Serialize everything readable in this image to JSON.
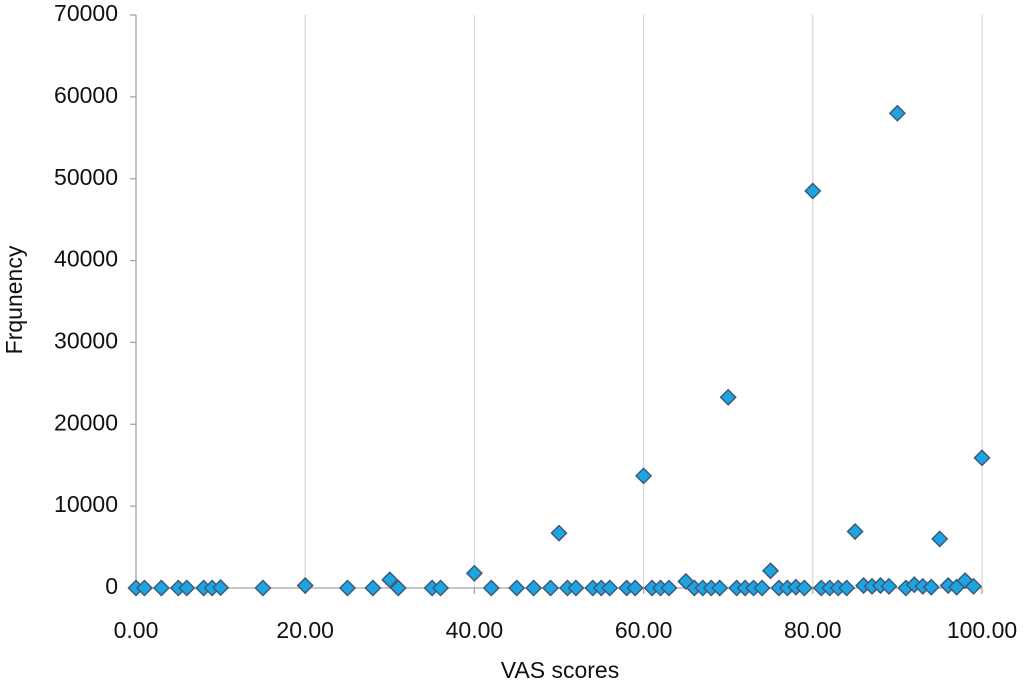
{
  "chart_data": {
    "type": "scatter",
    "x_label": "VAS scores",
    "y_label": "Frqunency",
    "color": "#1ea4e0",
    "grid": "x",
    "xlim": [
      0,
      100
    ],
    "ylim": [
      0,
      70000
    ],
    "xticks": [
      {
        "value": 0,
        "label": "0.00"
      },
      {
        "value": 20,
        "label": "20.00"
      },
      {
        "value": 40,
        "label": "40.00"
      },
      {
        "value": 60,
        "label": "60.00"
      },
      {
        "value": 80,
        "label": "80.00"
      },
      {
        "value": 100,
        "label": "100.00"
      }
    ],
    "yticks": [
      0,
      10000,
      20000,
      30000,
      40000,
      50000,
      60000,
      70000
    ],
    "x": [
      0,
      1,
      3,
      5,
      6,
      8,
      9,
      10,
      15,
      20,
      25,
      28,
      30,
      31,
      35,
      36,
      40,
      42,
      45,
      47,
      49,
      50,
      51,
      52,
      54,
      55,
      56,
      58,
      59,
      60,
      61,
      62,
      63,
      65,
      66,
      67,
      68,
      69,
      70,
      71,
      72,
      73,
      74,
      75,
      76,
      77,
      78,
      79,
      80,
      81,
      82,
      83,
      84,
      85,
      86,
      87,
      88,
      89,
      90,
      91,
      92,
      93,
      94,
      95,
      96,
      97,
      98,
      99,
      100
    ],
    "values": [
      0,
      0,
      0,
      0,
      0,
      0,
      0,
      50,
      0,
      300,
      0,
      0,
      1000,
      0,
      0,
      0,
      1800,
      0,
      0,
      0,
      0,
      6700,
      0,
      0,
      0,
      0,
      0,
      0,
      0,
      13700,
      0,
      0,
      0,
      800,
      0,
      0,
      0,
      0,
      23300,
      0,
      0,
      0,
      0,
      2100,
      0,
      0,
      100,
      0,
      48500,
      0,
      0,
      0,
      0,
      6900,
      300,
      200,
      300,
      200,
      58000,
      0,
      400,
      200,
      100,
      6000,
      300,
      100,
      900,
      200,
      15900
    ]
  }
}
